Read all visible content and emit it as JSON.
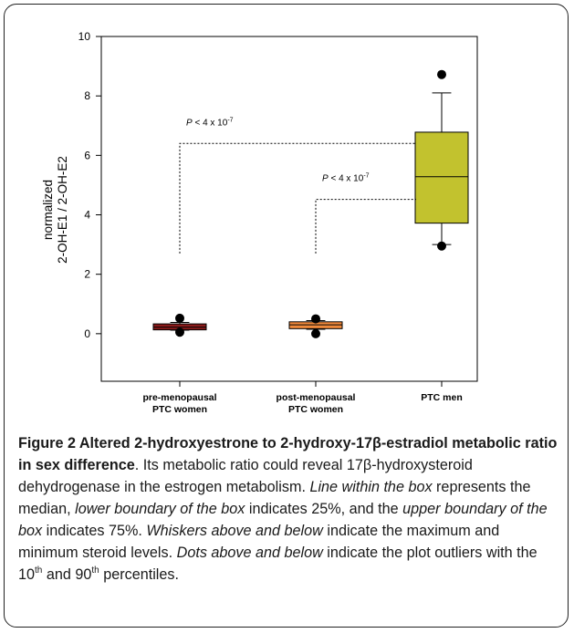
{
  "chart_data": {
    "type": "box",
    "ylabel_line1": "normalized",
    "ylabel_line2": "2-OH-E1 / 2-OH-E2",
    "ylim": [
      -1.6,
      10
    ],
    "yticks": [
      0,
      2,
      4,
      6,
      8,
      10
    ],
    "categories": [
      {
        "line1": "pre-menopausal",
        "line2": "PTC women"
      },
      {
        "line1": "post-menopausal",
        "line2": "PTC women"
      },
      {
        "line1": "PTC men",
        "line2": ""
      }
    ],
    "boxes": [
      {
        "q1": 0.13,
        "median": 0.22,
        "q3": 0.33,
        "whisker_low": 0.12,
        "whisker_high": 0.38,
        "outliers": [
          0.05,
          0.52
        ],
        "color": "#8b1a1a"
      },
      {
        "q1": 0.17,
        "median": 0.3,
        "q3": 0.4,
        "whisker_low": 0.15,
        "whisker_high": 0.44,
        "outliers": [
          0.0,
          0.5
        ],
        "color": "#f08a3c"
      },
      {
        "q1": 3.72,
        "median": 5.28,
        "q3": 6.78,
        "whisker_low": 3.0,
        "whisker_high": 8.1,
        "outliers": [
          2.95,
          8.72
        ],
        "color": "#c2c22e"
      }
    ],
    "annotations": [
      {
        "text": "P < 4 x 10",
        "exponent": "-7",
        "from_group": 1,
        "to_group": 3,
        "bracket_y": 6.4,
        "drop_to": 2.7
      },
      {
        "text": "P < 4 x 10",
        "exponent": "-7",
        "from_group": 2,
        "to_group": 3,
        "bracket_y": 4.52,
        "drop_to": 2.7
      }
    ]
  },
  "caption": {
    "title": "Figure 2 Altered 2-hydroxyestrone to 2-hydroxy-17β-estradiol metabolic ratio in sex difference",
    "sent1": ". Its metabolic ratio could reveal 17β-hydroxysteroid dehydrogenase in the estrogen metabolism. ",
    "i1": "Line within the box",
    "sent2": " represents the median, ",
    "i2": "lower boundary of the box",
    "sent3": " indicates 25%, and the ",
    "i3": "upper boundary of the box",
    "sent4": " indicates 75%. ",
    "i4": "Whiskers above and below",
    "sent5": " indicate the maximum and minimum steroid levels. ",
    "i5": "Dots above and below",
    "sent6": " indicate the plot outliers with the 10",
    "sup1": "th",
    "sent7": " and 90",
    "sup2": "th",
    "sent8": " percentiles."
  }
}
